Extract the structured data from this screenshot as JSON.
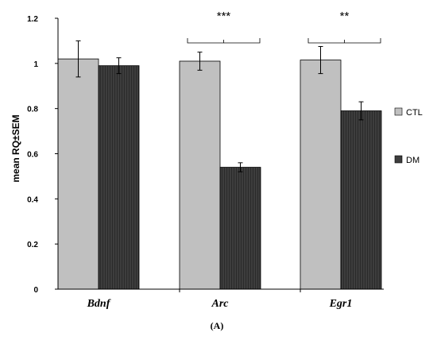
{
  "chart_data": {
    "type": "bar",
    "categories": [
      "Bdnf",
      "Arc",
      "Egr1"
    ],
    "series": [
      {
        "name": "CTL",
        "values": [
          1.02,
          1.01,
          1.015
        ],
        "errors": [
          0.08,
          0.04,
          0.06
        ],
        "color": "#c0c0c0"
      },
      {
        "name": "DM",
        "values": [
          0.99,
          0.54,
          0.79
        ],
        "errors": [
          0.035,
          0.02,
          0.04
        ],
        "color": "#3d3d3d"
      }
    ],
    "ylabel": "mean RQ±SEM",
    "ylim": [
      0,
      1.2
    ],
    "yticks": [
      {
        "value": 0,
        "label": "0"
      },
      {
        "value": 0.2,
        "label": "0.2"
      },
      {
        "value": 0.4,
        "label": "0.4"
      },
      {
        "value": 0.6,
        "label": "0.6"
      },
      {
        "value": 0.8,
        "label": "0.8"
      },
      {
        "value": 1,
        "label": "1"
      },
      {
        "value": 1.2,
        "label": "1.2"
      }
    ],
    "significance": [
      {
        "category": "Arc",
        "label": "***"
      },
      {
        "category": "Egr1",
        "label": "**"
      }
    ],
    "legend_position": "right",
    "grid": false
  },
  "panel_label": "(A)"
}
